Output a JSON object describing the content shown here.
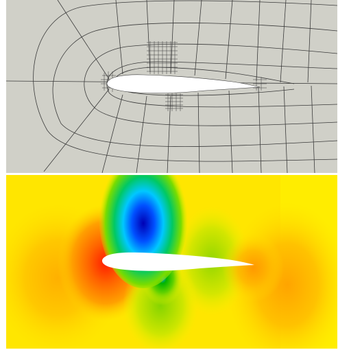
{
  "figure": {
    "panels": [
      {
        "id": "mesh",
        "kind": "structured-mesh-around-airfoil",
        "background_color": "#d0d0c8",
        "line_color": "#3a3a3a"
      },
      {
        "id": "field",
        "kind": "flow-field-contour",
        "colormap": [
          "#0000c8",
          "#00c8ff",
          "#00b400",
          "#b4e600",
          "#ffff00",
          "#ffb400",
          "#ff0000"
        ],
        "airfoil_color": "#ffffff"
      }
    ]
  }
}
